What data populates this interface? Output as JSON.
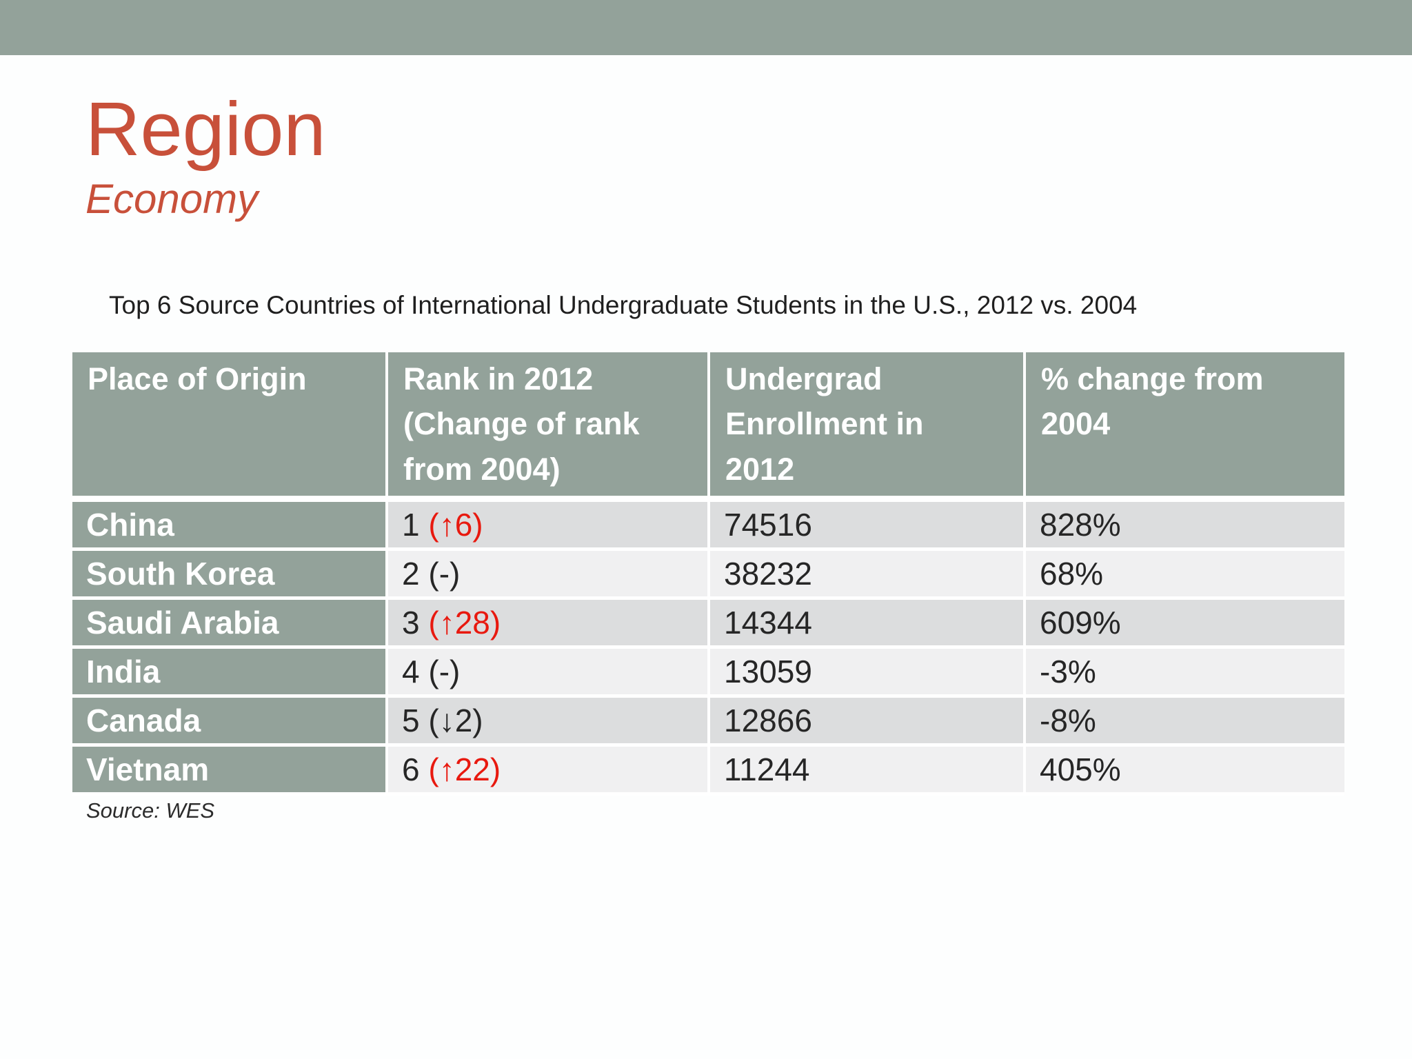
{
  "slide": {
    "title": "Region",
    "subtitle": "Economy"
  },
  "theme": {
    "header_bar_green": "#93a29a",
    "title_red_orange": "#c8503a",
    "rank_up_red": "#e8190f",
    "row_stripe_dark": "#dcddde",
    "row_stripe_light": "#f0f0f1",
    "body_text": "#262626"
  },
  "table": {
    "caption": "Top 6 Source Countries of International Undergraduate Students in the U.S., 2012 vs. 2004",
    "columns": [
      "Place of Origin",
      "Rank in 2012\n(Change of rank\nfrom 2004)",
      "Undergrad\nEnrollment in\n2012",
      "% change from\n2004"
    ],
    "rows": [
      {
        "origin": "China",
        "rank": "1",
        "change": "(↑6)",
        "change_red": true,
        "enrollment": "74516",
        "pct_change": "828%"
      },
      {
        "origin": "South Korea",
        "rank": "2",
        "change": "(-)",
        "change_red": false,
        "enrollment": "38232",
        "pct_change": "68%"
      },
      {
        "origin": "Saudi Arabia",
        "rank": "3",
        "change": "(↑28)",
        "change_red": true,
        "enrollment": "14344",
        "pct_change": "609%"
      },
      {
        "origin": "India",
        "rank": "4",
        "change": "(-)",
        "change_red": false,
        "enrollment": "13059",
        "pct_change": "-3%"
      },
      {
        "origin": "Canada",
        "rank": "5",
        "change": "(↓2)",
        "change_red": false,
        "enrollment": "12866",
        "pct_change": "-8%"
      },
      {
        "origin": "Vietnam",
        "rank": "6",
        "change": "(↑22)",
        "change_red": true,
        "enrollment": "11244",
        "pct_change": "405%"
      }
    ],
    "source": "Source: WES"
  }
}
